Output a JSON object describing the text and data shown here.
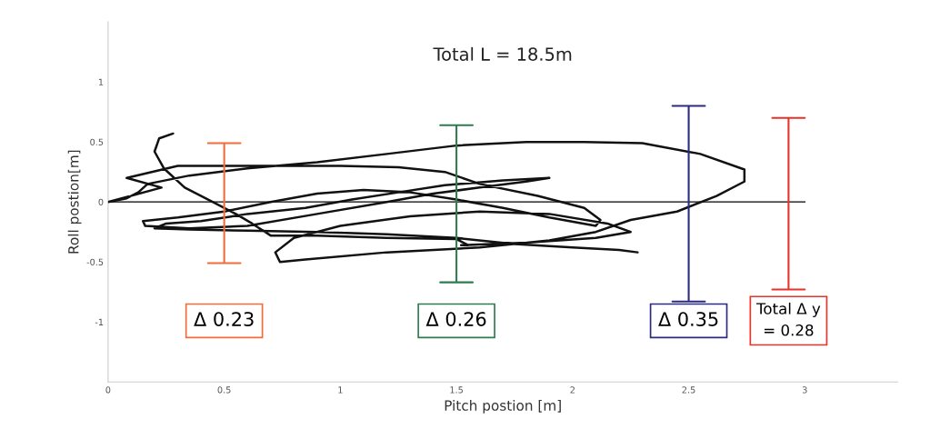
{
  "chart_data": {
    "type": "line",
    "title": "Total L = 18.5m",
    "xlabel": "Pitch postion [m]",
    "ylabel": "Roll postion[m]",
    "xlim": [
      0,
      3.4
    ],
    "ylim": [
      -1.5,
      1.5
    ],
    "xticks": [
      0,
      0.5,
      1,
      1.5,
      2,
      2.5,
      3
    ],
    "yticks": [
      -1,
      -0.5,
      0,
      0.5,
      1
    ],
    "grid": false,
    "marker": "none",
    "line_style": "solid",
    "ref_lines": [
      {
        "axis": "y",
        "value": 0,
        "color": "#000000"
      }
    ],
    "series": [
      {
        "color": "#111111",
        "x": [
          0.28,
          0.22,
          0.2,
          0.24,
          0.33,
          0.45,
          0.55,
          0.62,
          0.7,
          0.9,
          1.2,
          1.5,
          1.55,
          1.52,
          1.8,
          2.1,
          2.25,
          2.15,
          1.9,
          1.6,
          1.3,
          1.0,
          0.8,
          0.72,
          0.74,
          0.85,
          1.2,
          1.6,
          1.9,
          2.1,
          2.25,
          2.45,
          2.62,
          2.74,
          2.74,
          2.55,
          2.3,
          2.05,
          1.8,
          1.5,
          1.2,
          0.9,
          0.6,
          0.35,
          0.17,
          0.13,
          0.08,
          0.0,
          0.23,
          0.08,
          0.3,
          0.5,
          0.8,
          1.0,
          1.25,
          1.45,
          1.6,
          1.85,
          2.05,
          2.12,
          2.1,
          1.9,
          1.7,
          1.5,
          1.3,
          1.1,
          0.9,
          0.7,
          0.5,
          0.3,
          0.15,
          0.16,
          0.35,
          0.6,
          0.9,
          1.2,
          1.4,
          1.6,
          1.8,
          1.9,
          1.7,
          1.45,
          1.25,
          1.05,
          0.85,
          0.6,
          0.4,
          0.25,
          0.2,
          0.35,
          0.6,
          0.9,
          1.2,
          1.5,
          1.75,
          2.0,
          2.2,
          2.28
        ],
        "values": [
          0.57,
          0.53,
          0.42,
          0.28,
          0.12,
          0.0,
          -0.1,
          -0.18,
          -0.28,
          -0.28,
          -0.3,
          -0.31,
          -0.36,
          -0.36,
          -0.34,
          -0.3,
          -0.25,
          -0.18,
          -0.1,
          -0.08,
          -0.12,
          -0.2,
          -0.3,
          -0.42,
          -0.5,
          -0.48,
          -0.42,
          -0.38,
          -0.32,
          -0.25,
          -0.15,
          -0.08,
          0.05,
          0.17,
          0.27,
          0.4,
          0.49,
          0.5,
          0.5,
          0.47,
          0.4,
          0.33,
          0.28,
          0.22,
          0.15,
          0.08,
          0.03,
          0.0,
          0.12,
          0.2,
          0.3,
          0.3,
          0.3,
          0.3,
          0.29,
          0.25,
          0.15,
          0.05,
          -0.05,
          -0.15,
          -0.2,
          -0.13,
          -0.05,
          0.02,
          0.08,
          0.1,
          0.07,
          0.0,
          -0.08,
          -0.13,
          -0.16,
          -0.2,
          -0.22,
          -0.2,
          -0.1,
          0.0,
          0.07,
          0.12,
          0.17,
          0.2,
          0.18,
          0.14,
          0.08,
          0.02,
          -0.05,
          -0.1,
          -0.16,
          -0.18,
          -0.22,
          -0.23,
          -0.24,
          -0.25,
          -0.27,
          -0.3,
          -0.35,
          -0.38,
          -0.4,
          -0.42
        ]
      },
      {
        "type": "line",
        "color": "#f26b3a",
        "x": [
          0.43,
          0.57,
          0.5,
          0.5,
          0.43,
          0.57
        ],
        "values": [
          -0.51,
          -0.51,
          -0.51,
          0.49,
          0.49,
          0.49
        ]
      },
      {
        "type": "line",
        "color": "#2e7d4f",
        "x": [
          1.43,
          1.57,
          1.5,
          1.5,
          1.43,
          1.57
        ],
        "values": [
          -0.67,
          -0.67,
          -0.67,
          0.64,
          0.64,
          0.64
        ]
      },
      {
        "type": "line",
        "color": "#2b2b7f",
        "x": [
          2.43,
          2.57,
          2.5,
          2.5,
          2.43,
          2.57
        ],
        "values": [
          -0.83,
          -0.83,
          -0.83,
          0.8,
          0.8,
          0.8
        ]
      },
      {
        "type": "line",
        "color": "#e8332a",
        "x": [
          2.86,
          3.0,
          2.93,
          2.93,
          2.86,
          3.0
        ],
        "values": [
          -0.73,
          -0.73,
          -0.73,
          0.7,
          0.7,
          0.7
        ]
      }
    ],
    "annotations": [
      "Δ 0.23",
      "Δ 0.26",
      "Δ 0.35",
      "Total Δ y\n= 0.28"
    ]
  }
}
